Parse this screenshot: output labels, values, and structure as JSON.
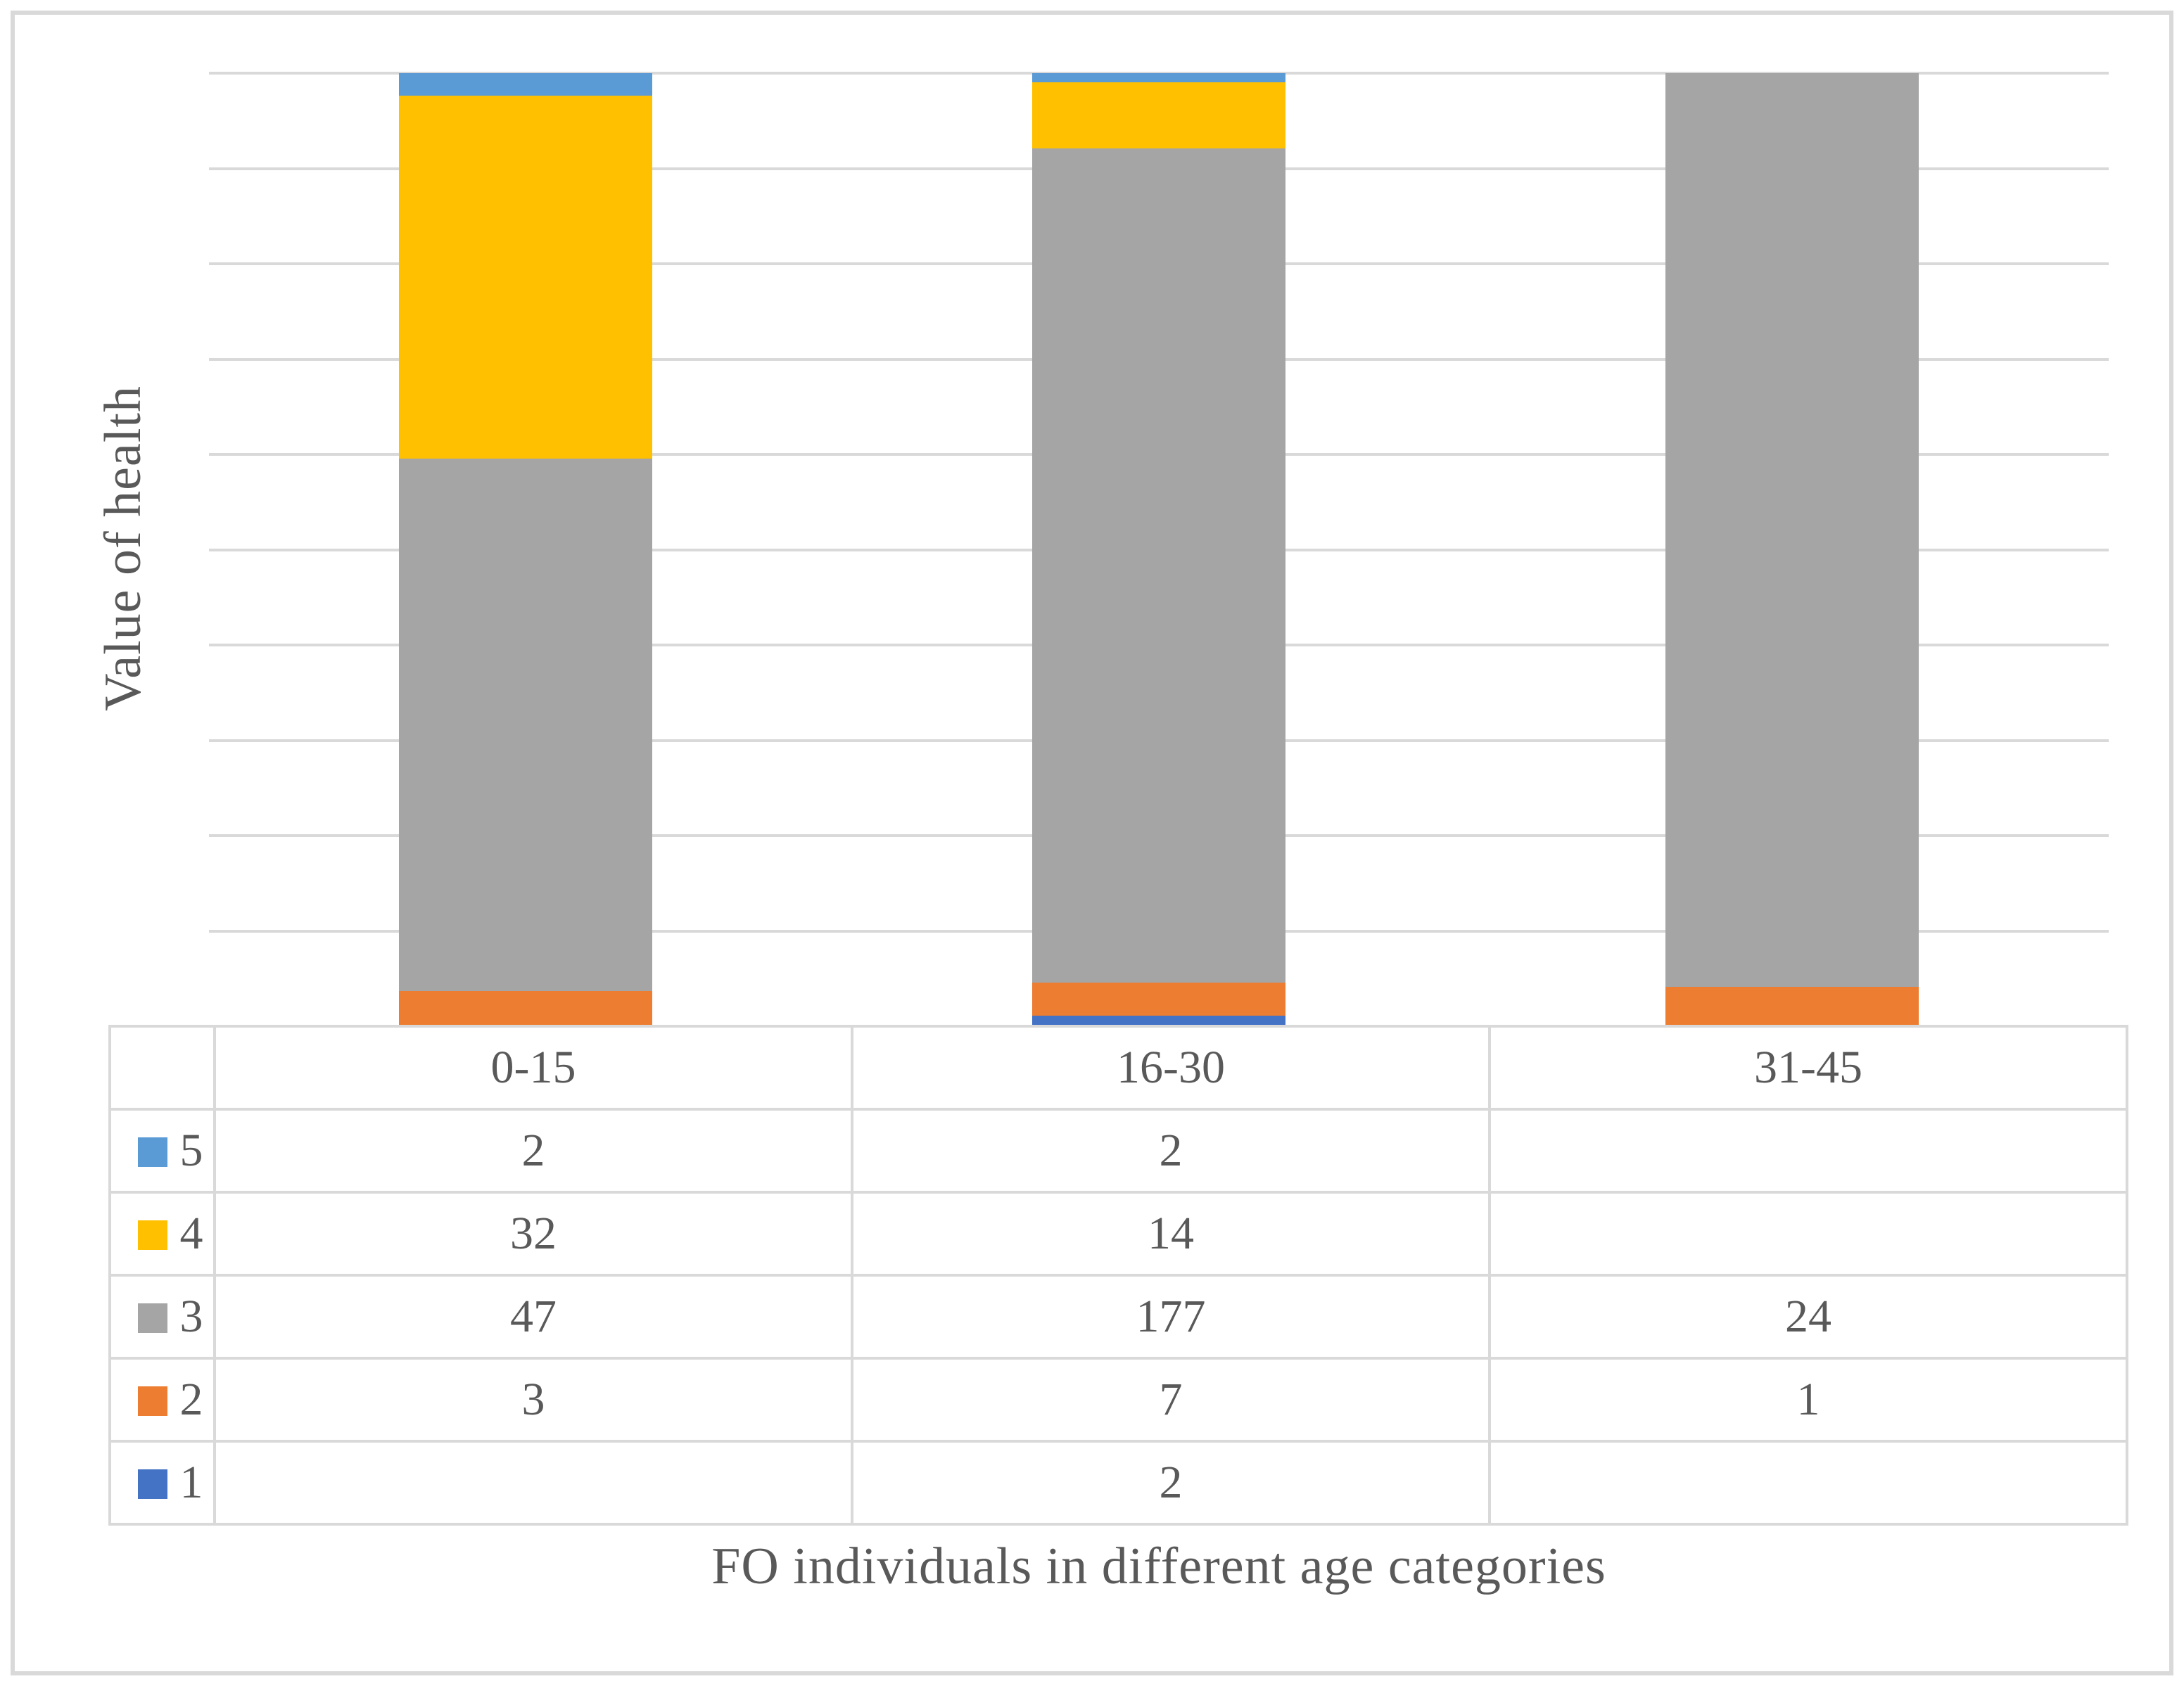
{
  "figure": {
    "background": "#FFFFFF",
    "border_color": "#D9D9D9",
    "text_color": "#595959",
    "grid_color": "#D9D9D9"
  },
  "axis_titles": {
    "y": "Value of health",
    "x": "FO individuals in different age categories"
  },
  "chart_data": {
    "type": "bar",
    "stacking": "percent",
    "orientation": "vertical",
    "title": "",
    "xlabel": "FO individuals in different age categories",
    "ylabel": "Value of health",
    "categories": [
      "0-15",
      "16-30",
      "31-45"
    ],
    "series": [
      {
        "name": "5",
        "color": "#5B9BD5",
        "values": [
          2,
          2,
          null
        ]
      },
      {
        "name": "4",
        "color": "#FFC000",
        "values": [
          32,
          14,
          null
        ]
      },
      {
        "name": "3",
        "color": "#A5A5A5",
        "values": [
          47,
          177,
          24
        ]
      },
      {
        "name": "2",
        "color": "#ED7D31",
        "values": [
          3,
          7,
          1
        ]
      },
      {
        "name": "1",
        "color": "#4472C4",
        "values": [
          null,
          2,
          null
        ]
      }
    ],
    "gridlines": 10,
    "grid": true,
    "ylim_percent": [
      0,
      100
    ],
    "legend_position": "data-table-left",
    "data_table": true
  }
}
